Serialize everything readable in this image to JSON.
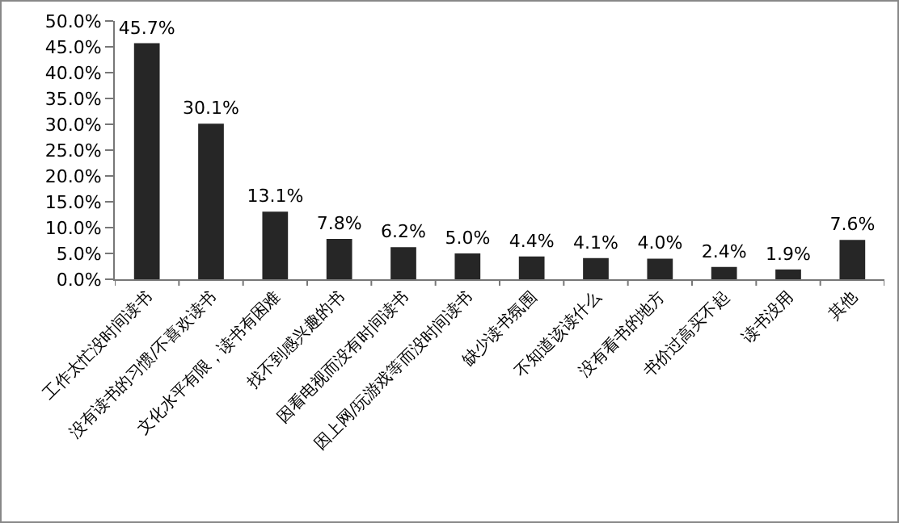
{
  "chart_data": {
    "type": "bar",
    "categories": [
      "工作太忙没时间读书",
      "没有读书的习惯/不喜欢读书",
      "文化水平有限，读书有困难",
      "找不到感兴趣的书",
      "因看电视而没有时间读书",
      "因上网/玩游戏等而没时间读书",
      "缺少读书氛围",
      "不知道该读什么",
      "没有看书的地方",
      "书价过高买不起",
      "读书没用",
      "其他"
    ],
    "values": [
      45.7,
      30.1,
      13.1,
      7.8,
      6.2,
      5.0,
      4.4,
      4.1,
      4.0,
      2.4,
      1.9,
      7.6
    ],
    "value_labels": [
      "45.7%",
      "30.1%",
      "13.1%",
      "7.8%",
      "6.2%",
      "5.0%",
      "4.4%",
      "4.1%",
      "4.0%",
      "2.4%",
      "1.9%",
      "7.6%"
    ],
    "color": "#262626",
    "ylim": [
      0,
      50
    ],
    "yticks": [
      {
        "value": 0,
        "label": "0.0%"
      },
      {
        "value": 5,
        "label": "5.0%"
      },
      {
        "value": 10,
        "label": "10.0%"
      },
      {
        "value": 15,
        "label": "15.0%"
      },
      {
        "value": 20,
        "label": "20.0%"
      },
      {
        "value": 25,
        "label": "25.0%"
      },
      {
        "value": 30,
        "label": "30.0%"
      },
      {
        "value": 35,
        "label": "35.0%"
      },
      {
        "value": 40,
        "label": "40.0%"
      },
      {
        "value": 45,
        "label": "45.0%"
      },
      {
        "value": 50,
        "label": "50.0%"
      }
    ],
    "grid": false,
    "legend": false
  }
}
